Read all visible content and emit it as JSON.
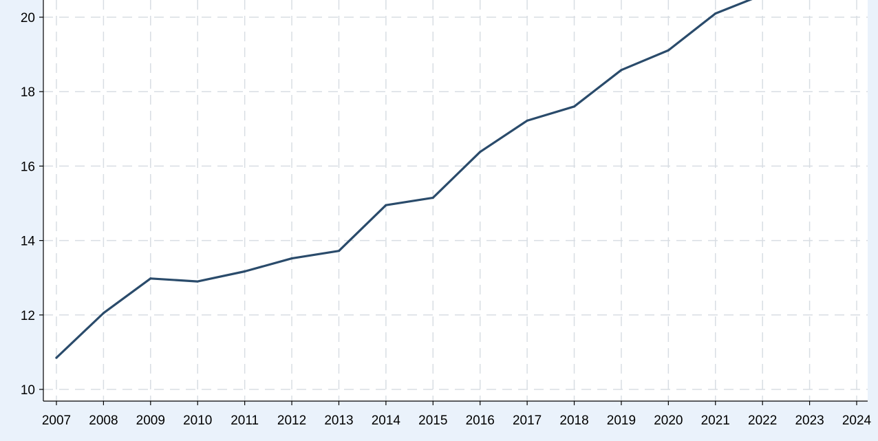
{
  "chart_data": {
    "type": "line",
    "title": "",
    "xlabel": "",
    "ylabel": "",
    "xlim": [
      2007,
      2024
    ],
    "ylim": [
      9.7,
      20.55
    ],
    "x_ticks": [
      2007,
      2008,
      2009,
      2010,
      2011,
      2012,
      2013,
      2014,
      2015,
      2016,
      2017,
      2018,
      2019,
      2020,
      2021,
      2022,
      2023,
      2024
    ],
    "x_tick_labels": [
      "2007",
      "2008",
      "2009",
      "2010",
      "2011",
      "2012",
      "2013",
      "2014",
      "2015",
      "2016",
      "2017",
      "2018",
      "2019",
      "2020",
      "2021",
      "2022",
      "2023",
      "2024"
    ],
    "y_ticks": [
      10,
      12,
      14,
      16,
      18,
      20
    ],
    "y_tick_labels": [
      "10",
      "12",
      "14",
      "16",
      "18",
      "20"
    ],
    "grid": true,
    "legend": "none",
    "line_color": "#2a4b6b",
    "grid_color": "#d8dde3",
    "background_color": "#eaf2fb",
    "plot_background_color": "#ffffff",
    "series": [
      {
        "x": [
          2007,
          2008,
          2009,
          2010,
          2011,
          2012,
          2013,
          2014,
          2015,
          2016,
          2017,
          2018,
          2019,
          2020,
          2021,
          2022
        ],
        "values": [
          10.85,
          12.05,
          12.98,
          12.9,
          13.17,
          13.52,
          13.72,
          14.95,
          15.15,
          16.38,
          17.22,
          17.6,
          18.58,
          19.11,
          20.1,
          20.6
        ]
      }
    ]
  }
}
